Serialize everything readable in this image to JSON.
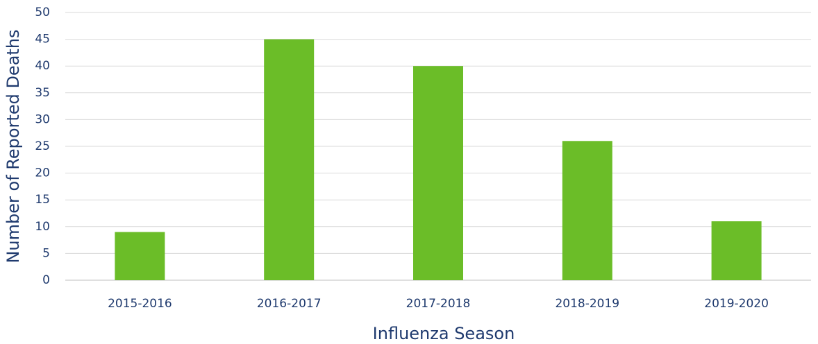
{
  "chart_data": {
    "type": "bar",
    "x_label": "Influenza Season",
    "y_label": "Number of Reported Deaths",
    "categories": [
      "2015-2016",
      "2016-2017",
      "2017-2018",
      "2018-2019",
      "2019-2020"
    ],
    "values": [
      9,
      45,
      40,
      26,
      11
    ],
    "color": "#6bbd28",
    "ylim": [
      0,
      50
    ],
    "yticks": [
      0,
      5,
      10,
      15,
      20,
      25,
      30,
      35,
      40,
      45,
      50
    ],
    "grid": true
  }
}
